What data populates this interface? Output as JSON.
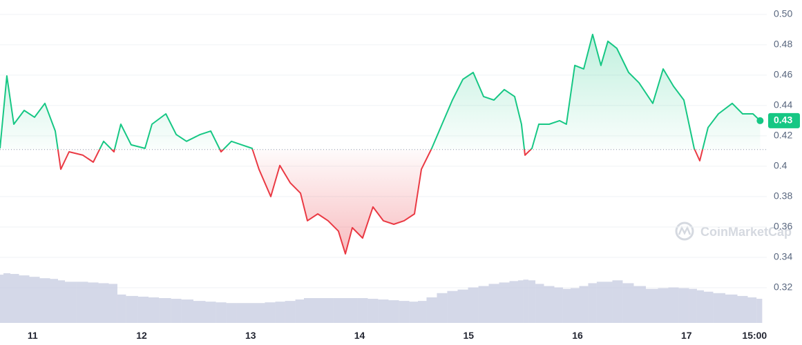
{
  "chart_data": {
    "type": "line",
    "watermark": "CoinMarketCap",
    "x": [
      10.7,
      10.763,
      10.827,
      10.922,
      11.017,
      11.112,
      11.207,
      11.258,
      11.334,
      11.461,
      11.556,
      11.651,
      11.746,
      11.809,
      11.904,
      12.031,
      12.095,
      12.222,
      12.317,
      12.412,
      12.538,
      12.634,
      12.729,
      12.824,
      12.919,
      13.014,
      13.077,
      13.185,
      13.268,
      13.363,
      13.458,
      13.521,
      13.616,
      13.711,
      13.806,
      13.87,
      13.933,
      14.028,
      14.123,
      14.218,
      14.314,
      14.409,
      14.504,
      14.567,
      14.662,
      14.757,
      14.852,
      14.948,
      15.043,
      15.138,
      15.233,
      15.328,
      15.423,
      15.486,
      15.518,
      15.582,
      15.645,
      15.74,
      15.835,
      15.898,
      15.975,
      16.057,
      16.139,
      16.215,
      16.279,
      16.361,
      16.469,
      16.564,
      16.691,
      16.786,
      16.881,
      16.976,
      17.071,
      17.122,
      17.198,
      17.293,
      17.42,
      17.515,
      17.61,
      17.676
    ],
    "series": [
      {
        "color": "#16c784",
        "color_below": "#ea3943",
        "values": [
          0.4118,
          0.4595,
          0.4277,
          0.4368,
          0.4323,
          0.4414,
          0.4232,
          0.398,
          0.4095,
          0.4073,
          0.4027,
          0.4164,
          0.4095,
          0.4277,
          0.4141,
          0.4118,
          0.4277,
          0.4345,
          0.4209,
          0.4164,
          0.4209,
          0.4232,
          0.4095,
          0.4164,
          0.4141,
          0.4118,
          0.398,
          0.38,
          0.4005,
          0.3891,
          0.3823,
          0.3641,
          0.3686,
          0.3641,
          0.3573,
          0.3423,
          0.3595,
          0.3527,
          0.3732,
          0.3641,
          0.3618,
          0.3641,
          0.3686,
          0.398,
          0.4118,
          0.4277,
          0.4436,
          0.4573,
          0.4618,
          0.4459,
          0.4436,
          0.4505,
          0.4459,
          0.4277,
          0.4073,
          0.4118,
          0.4277,
          0.4277,
          0.43,
          0.4277,
          0.4664,
          0.4641,
          0.4868,
          0.4664,
          0.4823,
          0.4777,
          0.4618,
          0.455,
          0.4414,
          0.4641,
          0.4527,
          0.4436,
          0.4118,
          0.4036,
          0.4255,
          0.4345,
          0.4414,
          0.4345,
          0.4345,
          0.43
        ]
      }
    ],
    "baseline": 0.411,
    "volume": {
      "color": "#c5cbe0",
      "values": [
        68,
        70,
        69,
        67,
        65,
        63,
        62,
        60,
        58,
        58,
        57,
        56,
        55,
        40,
        38,
        37,
        36,
        35,
        34,
        33,
        31,
        30,
        29,
        28,
        28,
        28,
        28,
        29,
        30,
        31,
        33,
        35,
        35,
        35,
        35,
        35,
        35,
        35,
        34,
        33,
        32,
        31,
        30,
        31,
        36,
        42,
        45,
        47,
        50,
        52,
        55,
        57,
        59,
        60,
        61,
        60,
        55,
        52,
        50,
        48,
        49,
        52,
        56,
        58,
        58,
        60,
        56,
        52,
        48,
        49,
        50,
        49,
        48,
        46,
        44,
        42,
        40,
        38,
        36,
        34
      ]
    },
    "xlim": [
      10.7,
      17.68
    ],
    "ylim": [
      0.2968,
      0.5095
    ],
    "yticks": [
      0.32,
      0.34,
      0.36,
      0.38,
      0.4,
      0.42,
      0.44,
      0.46,
      0.48,
      {
        "value": 0.5,
        "label": "0.50"
      }
    ],
    "xticks": [
      11,
      12,
      13,
      14,
      15,
      16,
      17,
      {
        "value": 17.625,
        "label": "15:00"
      }
    ],
    "grid": true
  }
}
